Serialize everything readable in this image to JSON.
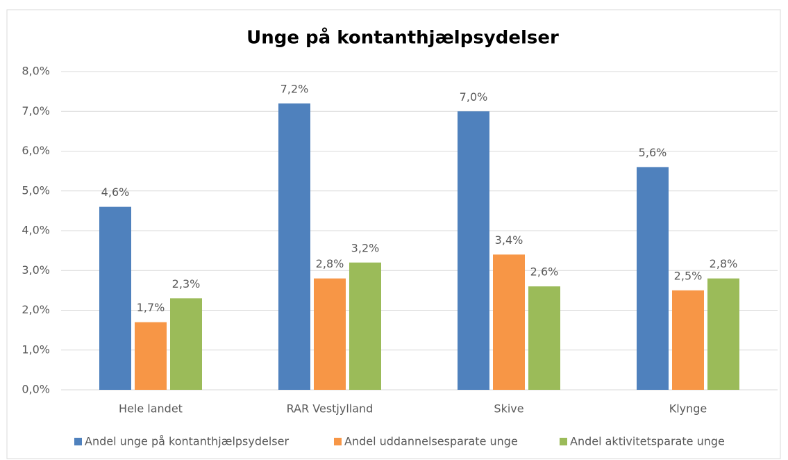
{
  "chart_data": {
    "type": "bar",
    "title": "Unge på kontanthjælpsydelser",
    "categories": [
      "Hele landet",
      "RAR Vestjylland",
      "Skive",
      "Klynge"
    ],
    "series": [
      {
        "name": "Andel unge på kontanthjælpsydelser",
        "color": "#4f81bd",
        "values": [
          4.6,
          7.2,
          7.0,
          5.6
        ],
        "value_labels": [
          "4,6%",
          "7,2%",
          "7,0%",
          "5,6%"
        ]
      },
      {
        "name": "Andel uddannelsesparate unge",
        "color": "#f79646",
        "values": [
          1.7,
          2.8,
          3.4,
          2.5
        ],
        "value_labels": [
          "1,7%",
          "2,8%",
          "3,4%",
          "2,5%"
        ]
      },
      {
        "name": "Andel aktivitetsparate unge",
        "color": "#9bbb59",
        "values": [
          2.3,
          3.2,
          2.6,
          2.8
        ],
        "value_labels": [
          "2,3%",
          "3,2%",
          "2,6%",
          "2,8%"
        ]
      }
    ],
    "ylim": [
      0,
      8
    ],
    "yticks": [
      {
        "value": 0,
        "label": "0,0%"
      },
      {
        "value": 1,
        "label": "1,0%"
      },
      {
        "value": 2,
        "label": "2,0%"
      },
      {
        "value": 3,
        "label": "3,0%"
      },
      {
        "value": 4,
        "label": "4,0%"
      },
      {
        "value": 5,
        "label": "5,0%"
      },
      {
        "value": 6,
        "label": "6,0%"
      },
      {
        "value": 7,
        "label": "7,0%"
      },
      {
        "value": 8,
        "label": "8,0%"
      }
    ],
    "grid": true,
    "legend": "bottom"
  }
}
